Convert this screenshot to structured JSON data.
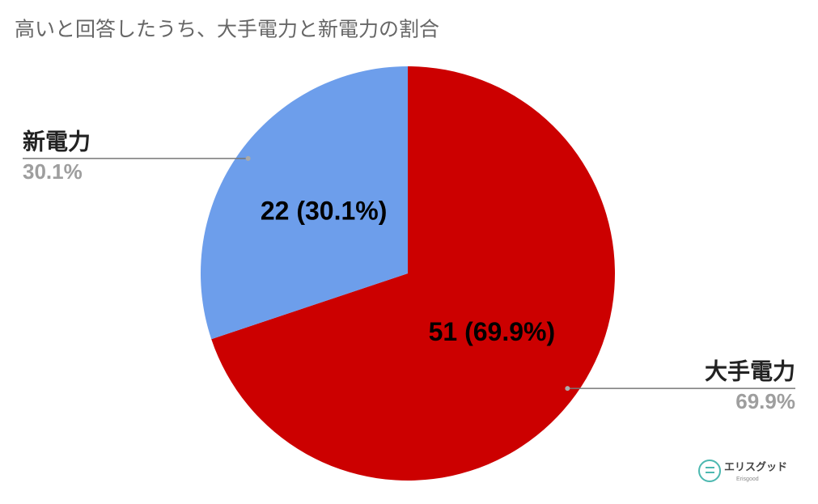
{
  "chart_data": {
    "type": "pie",
    "title": "高いと回答したうち、大手電力と新電力の割合",
    "categories": [
      "大手電力",
      "新電力"
    ],
    "values": [
      51,
      22
    ],
    "value_labels": [
      "51 (69.9%)",
      "22 (30.1%)"
    ],
    "percent_labels": [
      "69.9%",
      "30.1%"
    ],
    "colors": [
      "#cc0000",
      "#6d9eeb"
    ]
  },
  "logo": {
    "name": "エリスグッド",
    "subname": "Erisgood"
  }
}
